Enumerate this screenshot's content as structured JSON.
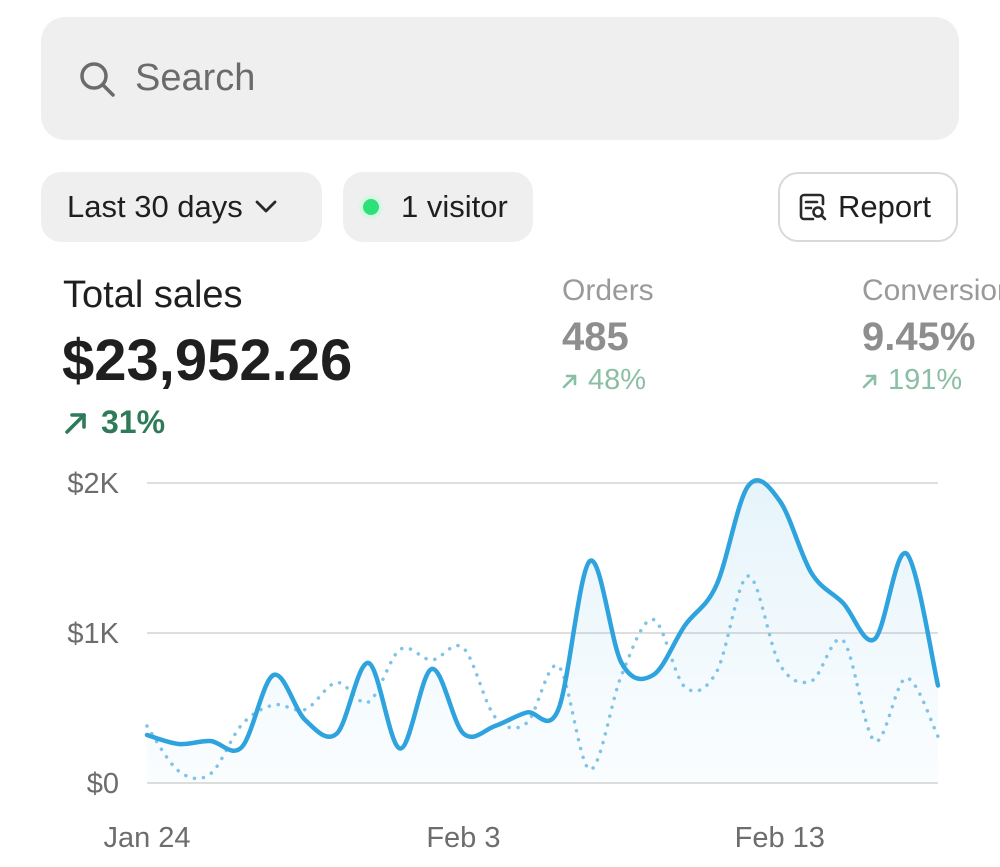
{
  "search": {
    "placeholder": "Search"
  },
  "filters": {
    "date_range": "Last 30 days",
    "visitors": "1 visitor",
    "report_label": "Report"
  },
  "colors": {
    "accent_line": "#2ea3dd",
    "comparison_line": "#7fc3e6",
    "live_dot": "#2ee07a",
    "positive_delta": "#2f7a58",
    "muted_positive_delta": "#8bbfa5"
  },
  "metrics": {
    "total_sales": {
      "label": "Total sales",
      "value": "$23,952.26",
      "delta": "31%"
    },
    "orders": {
      "label": "Orders",
      "value": "485",
      "delta": "48%"
    },
    "conversion": {
      "label": "Conversion",
      "value": "9.45%",
      "delta": "191%"
    }
  },
  "icons": {
    "search": "search-icon",
    "chevron": "chevron-down-icon",
    "report": "report-icon",
    "delta": "arrow-up-right-icon"
  },
  "chart_data": {
    "type": "line",
    "ylim": [
      0,
      2000
    ],
    "yticks": [
      {
        "label": "$0",
        "value": 0
      },
      {
        "label": "$1K",
        "value": 1000
      },
      {
        "label": "$2K",
        "value": 2000
      }
    ],
    "xticks": [
      {
        "label": "Jan 24",
        "index": 0
      },
      {
        "label": "Feb 3",
        "index": 10
      },
      {
        "label": "Feb 13",
        "index": 20
      }
    ],
    "grid": true,
    "series": [
      {
        "style": "solid",
        "values": [
          320,
          260,
          280,
          240,
          720,
          420,
          330,
          800,
          230,
          760,
          330,
          380,
          470,
          490,
          1480,
          800,
          720,
          1050,
          1320,
          1980,
          1880,
          1400,
          1200,
          960,
          1530,
          650
        ]
      },
      {
        "style": "dotted",
        "values": [
          380,
          80,
          60,
          390,
          520,
          490,
          670,
          540,
          890,
          820,
          900,
          440,
          400,
          780,
          90,
          720,
          1090,
          640,
          740,
          1380,
          790,
          680,
          950,
          280,
          700,
          310
        ]
      }
    ]
  }
}
